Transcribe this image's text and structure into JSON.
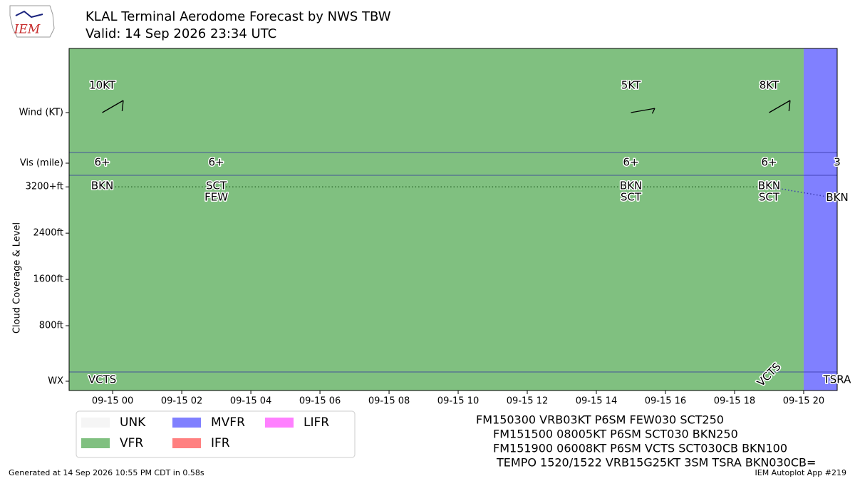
{
  "header": {
    "title": "KLAL Terminal Aerodome Forecast by NWS TBW",
    "subtitle": "Valid: 14 Sep 2026 23:34 UTC",
    "logo": "IEM"
  },
  "chart_data": {
    "type": "taf",
    "xlim": [
      -1.26,
      20.97
    ],
    "xticks": [
      {
        "value": 0,
        "label": "09-15 00"
      },
      {
        "value": 2,
        "label": "09-15 02"
      },
      {
        "value": 4,
        "label": "09-15 04"
      },
      {
        "value": 6,
        "label": "09-15 06"
      },
      {
        "value": 8,
        "label": "09-15 08"
      },
      {
        "value": 10,
        "label": "09-15 10"
      },
      {
        "value": 12,
        "label": "09-15 12"
      },
      {
        "value": 14,
        "label": "09-15 14"
      },
      {
        "value": 16,
        "label": "09-15 16"
      },
      {
        "value": 18,
        "label": "09-15 18"
      },
      {
        "value": 20,
        "label": "09-15 20"
      }
    ],
    "row_labels": {
      "wind": "Wind (KT)",
      "vis": "Vis (mile)",
      "wx": "WX"
    },
    "ylabel": "Cloud Coverage & Level",
    "ylim": [
      0,
      3400
    ],
    "yticks": [
      {
        "value": 800,
        "label": "800ft"
      },
      {
        "value": 1600,
        "label": "1600ft"
      },
      {
        "value": 2400,
        "label": "2400ft"
      },
      {
        "value": 3200,
        "label": "3200+ft"
      }
    ],
    "categories": [
      {
        "name": "VFR",
        "start": -1.26,
        "end": 20
      },
      {
        "name": "MVFR",
        "start": 20,
        "end": 20.97
      }
    ],
    "legend": [
      {
        "name": "UNK",
        "color": "#f5f5f5"
      },
      {
        "name": "VFR",
        "color": "#80c080"
      },
      {
        "name": "MVFR",
        "color": "#8080ff"
      },
      {
        "name": "IFR",
        "color": "#ff8080"
      },
      {
        "name": "LIFR",
        "color": "#ff80ff"
      }
    ],
    "forecasts": [
      {
        "time": -0.3,
        "wind": "10KT",
        "wind_dir": 60,
        "vis": "6+",
        "clouds": [
          {
            "cover": "BKN",
            "level": 3200
          }
        ],
        "wx": "VCTS"
      },
      {
        "time": 3,
        "vis": "6+",
        "clouds": [
          {
            "cover": "SCT",
            "level": 3200
          },
          {
            "cover": "FEW",
            "level": 3200
          }
        ]
      },
      {
        "time": 15,
        "wind": "5KT",
        "wind_dir": 80,
        "vis": "6+",
        "clouds": [
          {
            "cover": "BKN",
            "level": 3200
          },
          {
            "cover": "SCT",
            "level": 3200
          }
        ]
      },
      {
        "time": 19,
        "wind": "8KT",
        "wind_dir": 60,
        "vis": "6+",
        "clouds": [
          {
            "cover": "BKN",
            "level": 3200
          },
          {
            "cover": "SCT",
            "level": 3200
          }
        ],
        "wx": "VCTS"
      },
      {
        "time": 20.97,
        "vis": "3",
        "clouds": [
          {
            "cover": "BKN",
            "level": 3000
          }
        ],
        "wx": "TSRA"
      }
    ]
  },
  "taf_text": [
    "FM150300 VRB03KT P6SM FEW030 SCT250",
    "FM151500 08005KT P6SM SCT030 BKN250",
    "FM151900 06008KT P6SM VCTS SCT030CB BKN100",
    "TEMPO 1520/1522 VRB15G25KT 3SM TSRA BKN030CB="
  ],
  "footer": {
    "left": "Generated at 14 Sep 2026 10:55 PM CDT in 0.58s",
    "right": "IEM Autoplot App #219"
  }
}
